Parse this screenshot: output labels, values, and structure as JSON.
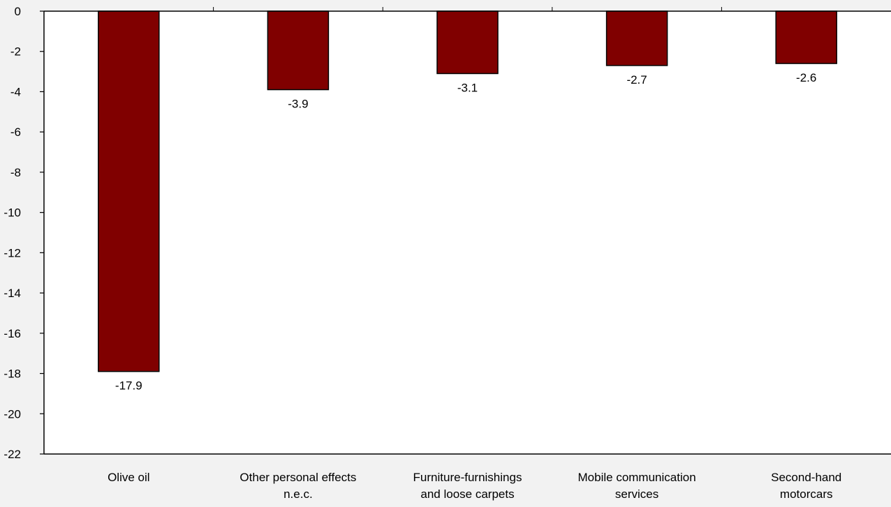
{
  "chart_data": {
    "type": "bar",
    "categories": [
      [
        "Olive oil"
      ],
      [
        "Other personal effects",
        "n.e.c."
      ],
      [
        "Furniture-furnishings",
        "and loose carpets"
      ],
      [
        "Mobile communication",
        "services"
      ],
      [
        "Second-hand",
        "motorcars"
      ]
    ],
    "values": [
      -17.9,
      -3.9,
      -3.1,
      -2.7,
      -2.6
    ],
    "data_labels": [
      "-17.9",
      "-3.9",
      "-3.1",
      "-2.7",
      "-2.6"
    ],
    "ylim": [
      -22,
      0
    ],
    "yticks": [
      0,
      -2,
      -4,
      -6,
      -8,
      -10,
      -12,
      -14,
      -16,
      -18,
      -20,
      -22
    ],
    "title": "",
    "xlabel": "",
    "ylabel": "",
    "grid": false,
    "bar_color": "#800000",
    "plot_background": "#ffffff",
    "page_background": "#f2f2f2"
  }
}
